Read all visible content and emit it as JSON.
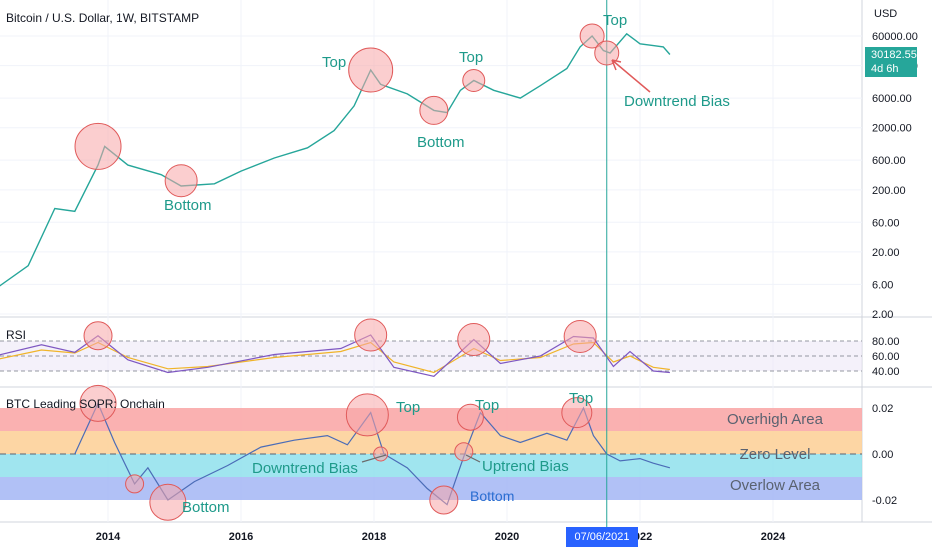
{
  "header": {
    "title": "Bitcoin / U.S. Dollar, 1W, BITSTAMP",
    "currency": "USD",
    "last_price": "30182.55",
    "countdown": "4d 6h",
    "crosshair_date": "07/06/2021"
  },
  "panes": {
    "rsi_title": "RSI",
    "sopr_title": "BTC Leading SOPR: Onchain"
  },
  "colors": {
    "teal": "#26a69a",
    "blue": "#2962ff",
    "rsi_line": "#7e57c2",
    "rsi_ma": "#f0b429",
    "circle_fill": "#f7a5a8",
    "circle_stroke": "#e05a5a",
    "overhigh": "#f9a8a8",
    "overhigh2": "#fdd19a",
    "zero_band": "#8fe0ec",
    "overlow": "#a8baf5"
  },
  "chart_data": [
    {
      "type": "line",
      "title": "Bitcoin / U.S. Dollar, 1W, BITSTAMP",
      "scale": "log",
      "ylabel": "USD",
      "y_ticks": [
        "60000.00",
        "20000.00",
        "6000.00",
        "2000.00",
        "600.00",
        "200.00",
        "60.00",
        "20.00",
        "6.00",
        "2.00"
      ],
      "x_ticks": [
        "2014",
        "2016",
        "2018",
        "2020",
        "2022",
        "2024"
      ],
      "x": [
        2012.3,
        2012.8,
        2013.2,
        2013.5,
        2013.85,
        2013.95,
        2014.3,
        2014.8,
        2015.1,
        2015.6,
        2016.0,
        2016.5,
        2017.0,
        2017.4,
        2017.7,
        2017.95,
        2018.1,
        2018.5,
        2018.9,
        2019.1,
        2019.3,
        2019.5,
        2019.8,
        2020.2,
        2020.5,
        2020.9,
        2021.1,
        2021.28,
        2021.45,
        2021.55,
        2021.8,
        2022.0,
        2022.2,
        2022.35,
        2022.45
      ],
      "values": [
        5,
        12,
        100,
        90,
        500,
        1000,
        500,
        350,
        230,
        250,
        400,
        650,
        950,
        1800,
        4500,
        17000,
        10000,
        7000,
        3800,
        3500,
        8000,
        11500,
        8000,
        6000,
        9500,
        18000,
        40000,
        60000,
        35000,
        32000,
        65000,
        45000,
        42000,
        40000,
        30182
      ],
      "annotations": [
        "Top",
        "Bottom",
        "Top",
        "Bottom",
        "Top",
        "Top",
        "Downtrend Bias"
      ]
    },
    {
      "type": "line",
      "title": "RSI",
      "y_ticks": [
        "80.00",
        "60.00",
        "40.00"
      ],
      "ylim": [
        30,
        90
      ],
      "x": [
        2012.3,
        2013.0,
        2013.5,
        2013.85,
        2014.3,
        2014.9,
        2015.5,
        2016.5,
        2017.5,
        2017.95,
        2018.3,
        2018.9,
        2019.5,
        2019.9,
        2020.5,
        2021.0,
        2021.3,
        2021.6,
        2021.85,
        2022.2,
        2022.45
      ],
      "series": [
        {
          "values": [
            60,
            75,
            65,
            87,
            55,
            38,
            45,
            62,
            70,
            88,
            45,
            33,
            82,
            50,
            60,
            86,
            84,
            46,
            66,
            40,
            38
          ]
        },
        {
          "values": [
            55,
            68,
            64,
            78,
            58,
            43,
            46,
            58,
            66,
            78,
            52,
            38,
            70,
            54,
            58,
            76,
            78,
            52,
            60,
            45,
            42
          ]
        }
      ]
    },
    {
      "type": "line",
      "title": "BTC Leading SOPR: Onchain",
      "y_ticks": [
        "0.02",
        "0.00",
        "-0.02"
      ],
      "ylim": [
        -0.03,
        0.025
      ],
      "x": [
        2013.5,
        2013.85,
        2014.1,
        2014.4,
        2014.6,
        2014.9,
        2015.3,
        2015.8,
        2016.3,
        2016.8,
        2017.3,
        2017.6,
        2017.95,
        2018.15,
        2018.5,
        2018.8,
        2019.1,
        2019.4,
        2019.6,
        2019.9,
        2020.2,
        2020.6,
        2020.9,
        2021.15,
        2021.3,
        2021.5,
        2021.7,
        2022.0,
        2022.2,
        2022.45
      ],
      "values": [
        0.0,
        0.022,
        0.005,
        -0.013,
        -0.006,
        -0.02,
        -0.012,
        -0.005,
        0.003,
        0.006,
        0.008,
        0.004,
        0.018,
        0.0,
        -0.006,
        -0.015,
        -0.022,
        0.003,
        0.018,
        0.008,
        0.005,
        0.009,
        0.006,
        0.02,
        0.008,
        0.0,
        -0.003,
        -0.002,
        -0.004,
        -0.006
      ],
      "zones": [
        "Overhigh Area",
        "Zero Level",
        "Overlow Area"
      ],
      "annotations": [
        "Top",
        "Top",
        "Top",
        "Downtrend Bias",
        "Uptrend Bias",
        "Bottom",
        "Bottom"
      ]
    }
  ]
}
